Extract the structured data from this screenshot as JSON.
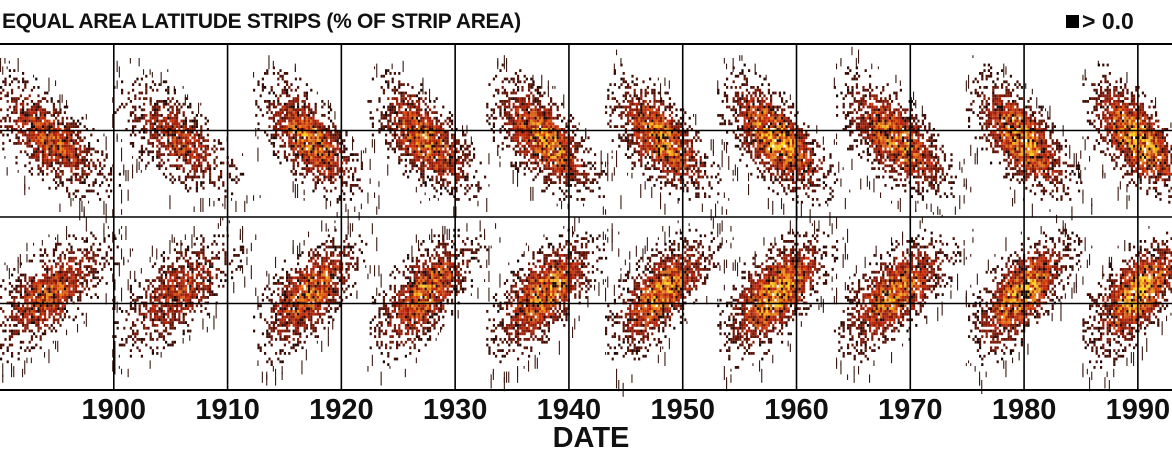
{
  "chart_data": {
    "type": "heatmap",
    "title": "EQUAL AREA LATITUDE STRIPS (% OF STRIP AREA)",
    "legend_label": "> 0.0",
    "xlabel": "DATE",
    "xlim": [
      1890,
      1993
    ],
    "x_ticks": [
      "1900",
      "1910",
      "1920",
      "1930",
      "1940",
      "1950",
      "1960",
      "1970",
      "1980",
      "1990"
    ],
    "ylim": [
      -1,
      1
    ],
    "y_gridlines": [
      -0.5,
      0,
      0.5
    ],
    "grid": true,
    "colors": {
      "low": "#2a0a05",
      "mid": "#c8280c",
      "high": "#ffd21e",
      "background": "#ffffff",
      "frame": "#000000"
    },
    "cycles": [
      {
        "start": 1889.5,
        "end": 1902.5,
        "peak": 0.7
      },
      {
        "start": 1900.8,
        "end": 1913.5,
        "peak": 0.6
      },
      {
        "start": 1913.2,
        "end": 1923.8,
        "peak": 0.85
      },
      {
        "start": 1923.2,
        "end": 1934.2,
        "peak": 0.85
      },
      {
        "start": 1933.6,
        "end": 1944.8,
        "peak": 0.9
      },
      {
        "start": 1944.0,
        "end": 1954.8,
        "peak": 0.9
      },
      {
        "start": 1954.0,
        "end": 1965.2,
        "peak": 1.0
      },
      {
        "start": 1964.2,
        "end": 1976.2,
        "peak": 0.85
      },
      {
        "start": 1975.8,
        "end": 1986.4,
        "peak": 0.95
      },
      {
        "start": 1986.0,
        "end": 1996.5,
        "peak": 1.0
      }
    ]
  }
}
